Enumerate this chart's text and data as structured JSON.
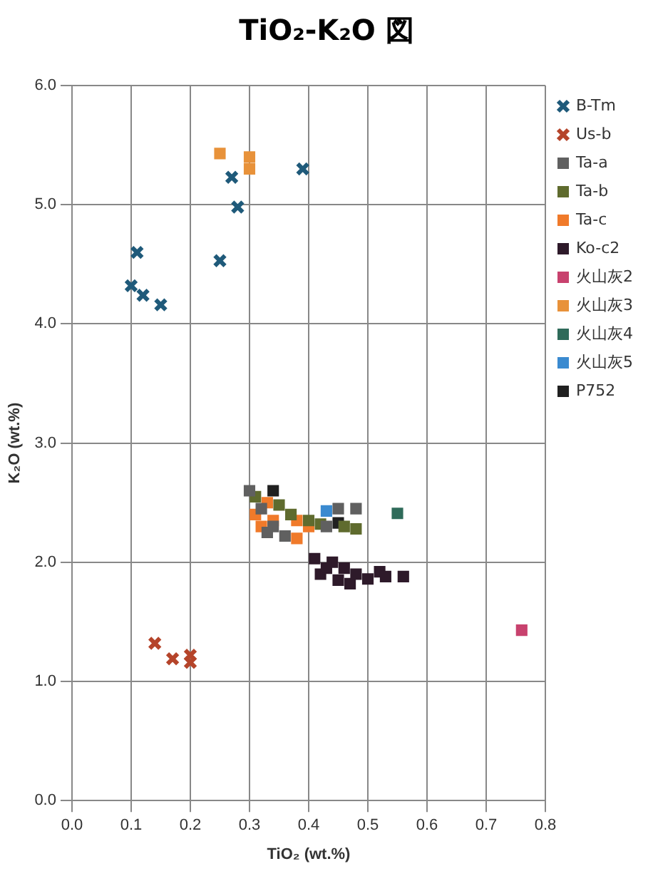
{
  "chart_data": {
    "type": "scatter",
    "title": "TiO₂-K₂O 図",
    "xlabel": "TiO₂ (wt.%)",
    "ylabel": "K₂O (wt.%)",
    "xlim": [
      0,
      0.8
    ],
    "xticks": [
      {
        "value": 0,
        "label": "0.0"
      },
      0.1,
      0.2,
      0.3,
      0.4,
      0.5,
      0.6,
      0.7,
      0.8
    ],
    "ylim": [
      0,
      6
    ],
    "yticks": [
      {
        "value": 0,
        "label": "0.0"
      },
      {
        "value": 1,
        "label": "1.0"
      },
      {
        "value": 2,
        "label": "2.0"
      },
      {
        "value": 3,
        "label": "3.0"
      },
      {
        "value": 4,
        "label": "4.0"
      },
      {
        "value": 5,
        "label": "5.0"
      },
      {
        "value": 6,
        "label": "6.0"
      }
    ],
    "grid": true,
    "legend": "right",
    "series": [
      {
        "name": "B-Tm",
        "color": "#1f5a7a",
        "marker": "cross",
        "x": [
          0.1,
          0.11,
          0.12,
          0.15,
          0.25,
          0.27,
          0.28,
          0.39
        ],
        "values": [
          4.32,
          4.6,
          4.24,
          4.16,
          4.53,
          5.23,
          4.98,
          5.3
        ]
      },
      {
        "name": "Us-b",
        "color": "#b5442a",
        "marker": "cross",
        "x": [
          0.14,
          0.17,
          0.2,
          0.2
        ],
        "values": [
          1.32,
          1.19,
          1.22,
          1.16
        ]
      },
      {
        "name": "Ta-a",
        "color": "#606060",
        "marker": "square",
        "x": [
          0.3,
          0.32,
          0.34,
          0.36,
          0.45,
          0.48,
          0.33,
          0.43
        ],
        "values": [
          2.6,
          2.45,
          2.3,
          2.22,
          2.45,
          2.45,
          2.25,
          2.3
        ]
      },
      {
        "name": "Ta-b",
        "color": "#5f6b2e",
        "marker": "square",
        "x": [
          0.31,
          0.35,
          0.37,
          0.4,
          0.46,
          0.48,
          0.42
        ],
        "values": [
          2.55,
          2.48,
          2.4,
          2.35,
          2.3,
          2.28,
          2.32
        ]
      },
      {
        "name": "Ta-c",
        "color": "#f07a2a",
        "marker": "square",
        "x": [
          0.31,
          0.32,
          0.34,
          0.38,
          0.38,
          0.4,
          0.33
        ],
        "values": [
          2.4,
          2.3,
          2.35,
          2.2,
          2.35,
          2.3,
          2.5
        ]
      },
      {
        "name": "Ko-c2",
        "color": "#2e1a2a",
        "marker": "square",
        "x": [
          0.41,
          0.42,
          0.44,
          0.45,
          0.46,
          0.47,
          0.48,
          0.5,
          0.52,
          0.53,
          0.56,
          0.43
        ],
        "values": [
          2.03,
          1.9,
          2.0,
          1.85,
          1.95,
          1.82,
          1.9,
          1.86,
          1.92,
          1.88,
          1.88,
          1.95
        ]
      },
      {
        "name": "火山灰2",
        "color": "#c8426e",
        "marker": "square",
        "x": [
          0.76
        ],
        "values": [
          1.43
        ]
      },
      {
        "name": "火山灰3",
        "color": "#e8923a",
        "marker": "square",
        "x": [
          0.25,
          0.3,
          0.3
        ],
        "values": [
          5.43,
          5.4,
          5.3
        ]
      },
      {
        "name": "火山灰4",
        "color": "#2f6b5a",
        "marker": "square",
        "x": [
          0.55
        ],
        "values": [
          2.41
        ]
      },
      {
        "name": "火山灰5",
        "color": "#3a8ad0",
        "marker": "square",
        "x": [
          0.43
        ],
        "values": [
          2.43
        ]
      },
      {
        "name": "P752",
        "color": "#202020",
        "marker": "square",
        "x": [
          0.34,
          0.45
        ],
        "values": [
          2.6,
          2.33
        ]
      }
    ]
  }
}
